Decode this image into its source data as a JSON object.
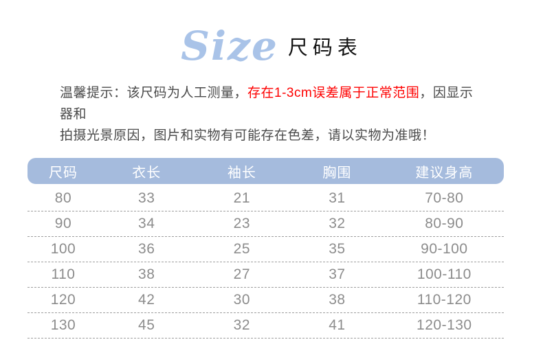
{
  "title": {
    "script": "Size",
    "text": "尺码表"
  },
  "notice": {
    "line1_prefix": "温馨提示：该尺码为人工测量，",
    "line1_highlight": "存在1-3cm误差属于正常范围",
    "line1_suffix": "，因显示器和",
    "line2": "拍摄光景原因，图片和实物有可能存在色差，请以实物为准哦！",
    "highlight_color": "#fe0000",
    "text_color": "#4a4a4a"
  },
  "table": {
    "headers": [
      "尺码",
      "衣长",
      "袖长",
      "胸围",
      "建议身高"
    ],
    "rows": [
      [
        "80",
        "33",
        "21",
        "31",
        "70-80"
      ],
      [
        "90",
        "34",
        "23",
        "32",
        "80-90"
      ],
      [
        "100",
        "36",
        "25",
        "35",
        "90-100"
      ],
      [
        "110",
        "38",
        "27",
        "37",
        "100-110"
      ],
      [
        "120",
        "42",
        "30",
        "38",
        "110-120"
      ],
      [
        "130",
        "45",
        "32",
        "41",
        "120-130"
      ]
    ],
    "header_bg": "#a5bbdd",
    "header_text_color": "#ffffff",
    "row_text_color": "#8c8c8c",
    "title_script_color": "#a9c3e8"
  }
}
